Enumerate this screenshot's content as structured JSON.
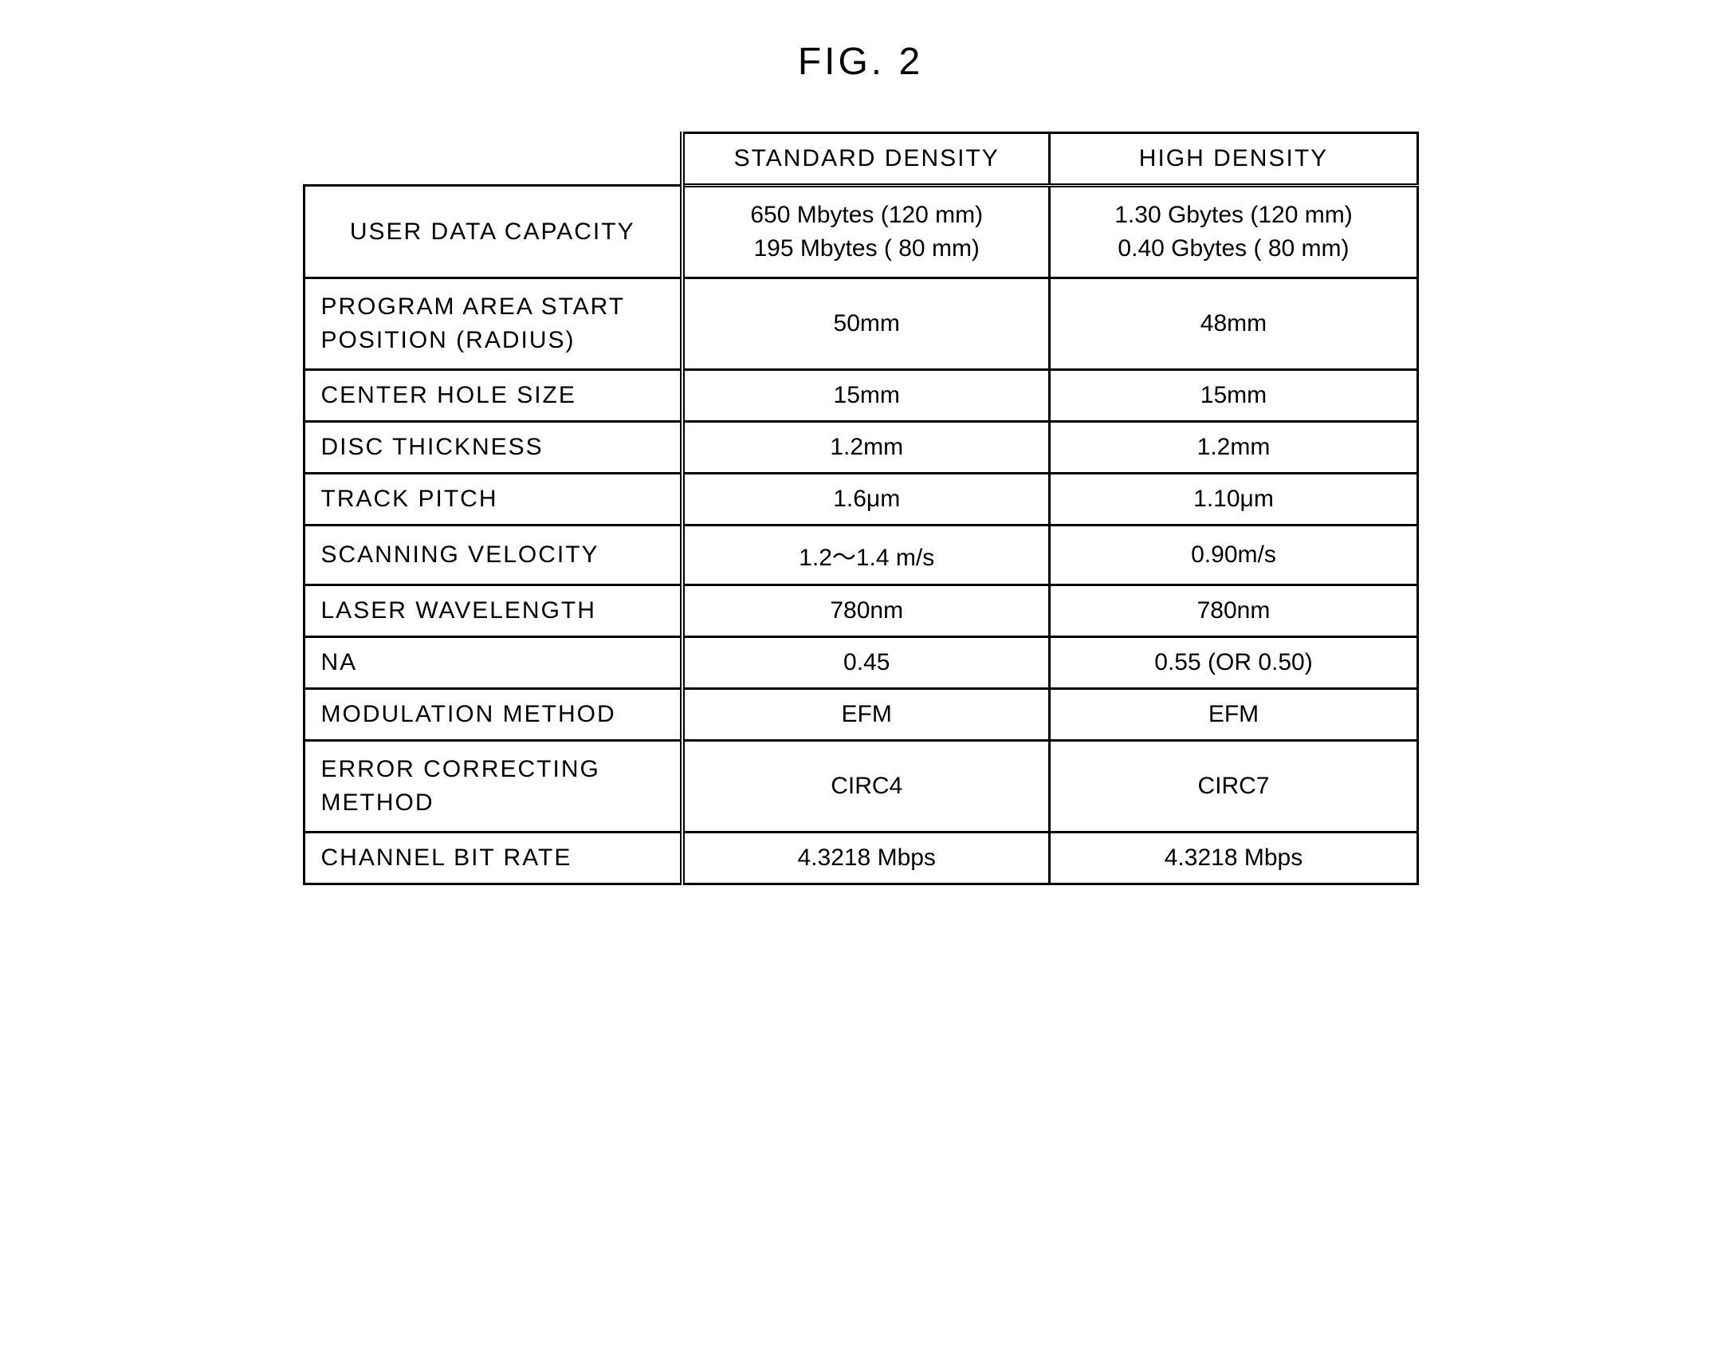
{
  "figure_title": "FIG. 2",
  "table": {
    "columns": [
      "STANDARD DENSITY",
      "HIGH DENSITY"
    ],
    "rows": [
      {
        "label": "USER DATA CAPACITY",
        "standard": "650 Mbytes (120 mm)\n195 Mbytes ( 80 mm)",
        "high": "1.30 Gbytes (120 mm)\n0.40 Gbytes ( 80 mm)"
      },
      {
        "label": "PROGRAM AREA START\nPOSITION (RADIUS)",
        "standard": "50mm",
        "high": "48mm"
      },
      {
        "label": "CENTER HOLE SIZE",
        "standard": "15mm",
        "high": "15mm"
      },
      {
        "label": "DISC THICKNESS",
        "standard": "1.2mm",
        "high": "1.2mm"
      },
      {
        "label": "TRACK PITCH",
        "standard": "1.6μm",
        "high": "1.10μm"
      },
      {
        "label": "SCANNING VELOCITY",
        "standard": "1.2～1.4 m/s",
        "high": "0.90m/s"
      },
      {
        "label": "LASER WAVELENGTH",
        "standard": "780nm",
        "high": "780nm"
      },
      {
        "label": "NA",
        "standard": "0.45",
        "high": "0.55 (OR 0.50)"
      },
      {
        "label": "MODULATION METHOD",
        "standard": "EFM",
        "high": "EFM"
      },
      {
        "label": "ERROR CORRECTING\nMETHOD",
        "standard": "CIRC4",
        "high": "CIRC7"
      },
      {
        "label": "CHANNEL BIT RATE",
        "standard": "4.3218 Mbps",
        "high": "4.3218 Mbps"
      }
    ]
  },
  "style": {
    "background_color": "#ffffff",
    "text_color": "#000000",
    "border_color": "#000000",
    "title_fontsize": 48,
    "cell_fontsize": 30,
    "border_width": 3,
    "double_border_width": 6
  }
}
